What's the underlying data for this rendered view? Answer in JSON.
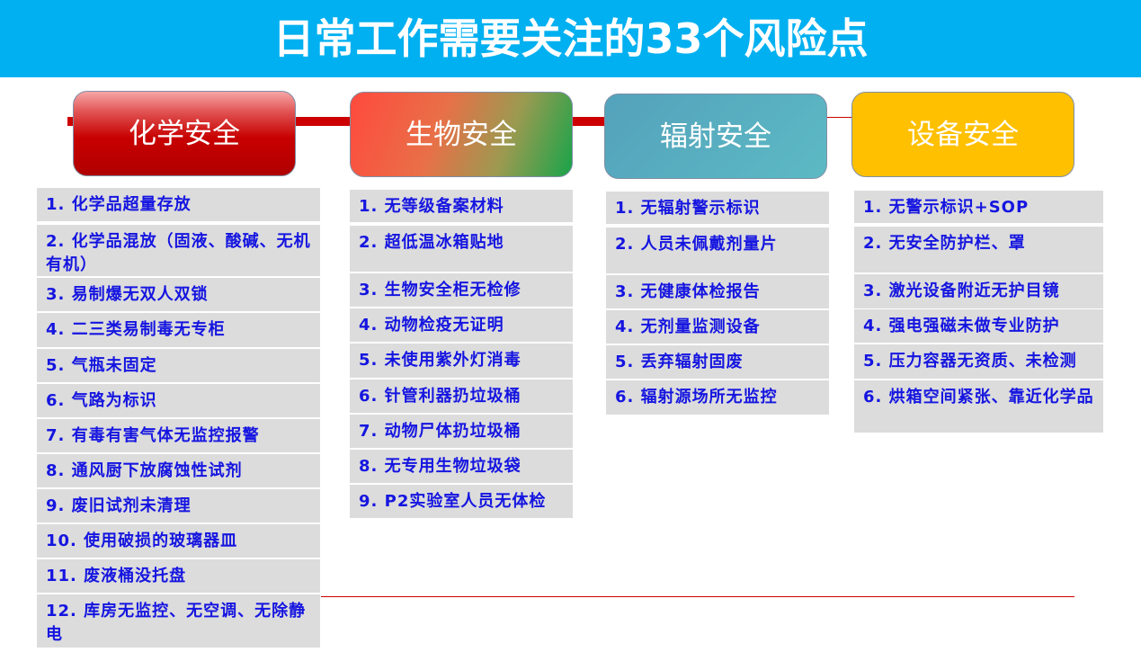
{
  "title": "日常工作需要关注的33个风险点",
  "colors": {
    "banner": "#00b0f0",
    "text": "#1515e0",
    "row_bg": "#dcdcdc",
    "line": "#cc0000"
  },
  "categories": [
    {
      "label": "化学安全",
      "items": [
        "1. 化学品超量存放",
        "2. 化学品混放（固液、酸碱、无机有机）",
        "3. 易制爆无双人双锁",
        "4. 二三类易制毒无专柜",
        "5. 气瓶未固定",
        "6. 气路为标识",
        "7. 有毒有害气体无监控报警",
        "8. 通风厨下放腐蚀性试剂",
        "9. 废旧试剂未清理",
        "10. 使用破损的玻璃器皿",
        "11. 废液桶没托盘",
        "12. 库房无监控、无空调、无除静电"
      ]
    },
    {
      "label": "生物安全",
      "items": [
        "1. 无等级备案材料",
        "2. 超低温冰箱贴地",
        "3. 生物安全柜无检修",
        "4. 动物检疫无证明",
        "5. 未使用紫外灯消毒",
        "6. 针管利器扔垃圾桶",
        "7. 动物尸体扔垃圾桶",
        "8. 无专用生物垃圾袋",
        "9. P2实验室人员无体检"
      ]
    },
    {
      "label": "辐射安全",
      "items": [
        "1. 无辐射警示标识",
        "2. 人员未佩戴剂量片",
        "3. 无健康体检报告",
        "4. 无剂量监测设备",
        "5. 丢弃辐射固废",
        "6. 辐射源场所无监控"
      ]
    },
    {
      "label": "设备安全",
      "items": [
        "1. 无警示标识+SOP",
        "2. 无安全防护栏、罩",
        "3. 激光设备附近无护目镜",
        "4. 强电强磁未做专业防护",
        "5. 压力容器无资质、未检测",
        "6. 烘箱空间紧张、靠近化学品"
      ]
    }
  ]
}
